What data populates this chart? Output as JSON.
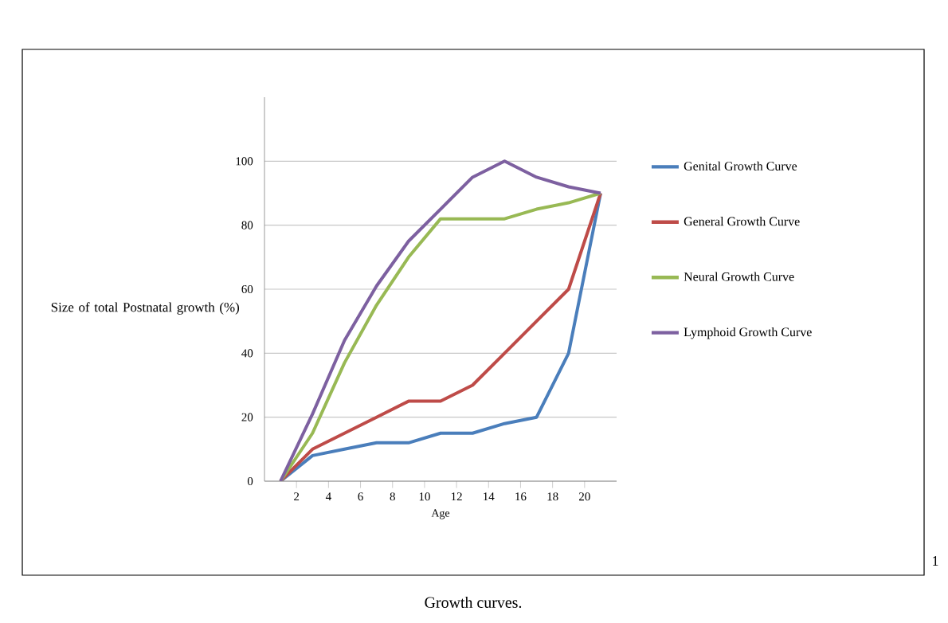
{
  "chart_data": {
    "type": "line",
    "xlabel": "Age",
    "ylabel": "Size of total Postnatal growth (%)",
    "x": [
      1,
      3,
      5,
      7,
      9,
      11,
      13,
      15,
      17,
      19,
      21
    ],
    "series": [
      {
        "name": "Genital Growth Curve",
        "color": "#4a7ebb",
        "values": [
          0,
          8,
          10,
          12,
          12,
          15,
          15,
          18,
          20,
          40,
          90
        ]
      },
      {
        "name": "General  Growth Curve",
        "color": "#be4b48",
        "values": [
          0,
          10,
          15,
          20,
          25,
          25,
          30,
          40,
          50,
          60,
          90
        ]
      },
      {
        "name": "Neural  Growth Curve",
        "color": "#98b954",
        "values": [
          0,
          15,
          37,
          55,
          70,
          82,
          82,
          82,
          85,
          87,
          90
        ]
      },
      {
        "name": "Lymphoid Growth Curve",
        "color": "#7d60a0",
        "values": [
          0,
          21,
          44,
          61,
          75,
          85,
          95,
          100,
          95,
          92,
          90
        ]
      }
    ],
    "xlim": [
      0,
      22
    ],
    "xticks": [
      2,
      4,
      6,
      8,
      10,
      12,
      14,
      16,
      18,
      20
    ],
    "ylim": [
      0,
      120
    ],
    "yticks": [
      0,
      20,
      40,
      60,
      80,
      100
    ],
    "grid": "y",
    "legend": "right",
    "marker": "none",
    "line_style": "solid",
    "annotations": [
      "1",
      "Growth curves."
    ]
  }
}
